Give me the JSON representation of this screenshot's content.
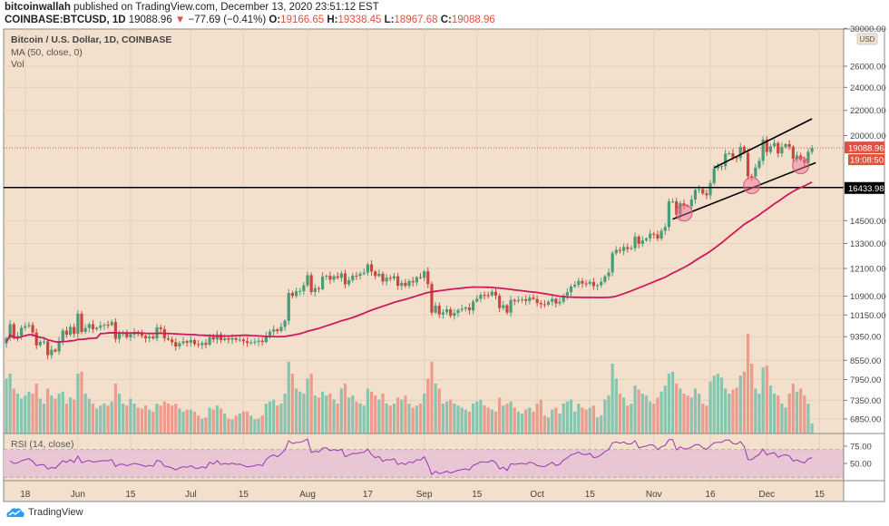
{
  "header": {
    "author": "bitcoinwallah",
    "published": "published on TradingView.com, December 13, 2020 23:51:12 EST",
    "symbol": "COINBASE:BTCUSD, 1D",
    "last": "19088.96",
    "change_arrow": "▼",
    "change": "−77.69 (−0.41%)",
    "o_label": "O:",
    "o": "19166.65",
    "h_label": "H:",
    "h": "19338.45",
    "l_label": "L:",
    "l": "18967.68",
    "c_label": "C:",
    "c": "19088.96"
  },
  "legend": {
    "title": "Bitcoin / U.S. Dollar, 1D, COINBASE",
    "ma": "MA (50, close, 0)",
    "vol": "Vol",
    "rsi": "RSI (14, close)"
  },
  "footer": {
    "brand": "TradingView"
  },
  "colors": {
    "background": "#f2dfcc",
    "up": "#4a9c78",
    "down": "#c9473b",
    "vol_up": "#88c4b0",
    "vol_down": "#ee9a8c",
    "ma": "#d0195c",
    "rsi": "#9c35b5",
    "rsi_band": "#e8c6d3",
    "price_label": "#e0513f"
  },
  "chart_data": [
    {
      "type": "candlestick",
      "title": "Bitcoin / U.S. Dollar, 1D, COINBASE",
      "start_date": "2020-05-13",
      "y_scale": "log",
      "y_currency": "USD",
      "y_ticks": [
        "30000.00",
        "26000.00",
        "24000.00",
        "22000.00",
        "20000.00",
        "14500.00",
        "13300.00",
        "12100.00",
        "10900.00",
        "10150.00",
        "9350.00",
        "8550.00",
        "7950.00",
        "7350.00",
        "6850.00"
      ],
      "x_ticks": [
        {
          "label": "18",
          "date": "2020-05-18"
        },
        {
          "label": "Jun",
          "date": "2020-06-01"
        },
        {
          "label": "15",
          "date": "2020-06-15"
        },
        {
          "label": "Jul",
          "date": "2020-07-01"
        },
        {
          "label": "15",
          "date": "2020-07-15"
        },
        {
          "label": "Aug",
          "date": "2020-08-01"
        },
        {
          "label": "17",
          "date": "2020-08-17"
        },
        {
          "label": "Sep",
          "date": "2020-09-01"
        },
        {
          "label": "15",
          "date": "2020-09-15"
        },
        {
          "label": "Oct",
          "date": "2020-10-01"
        },
        {
          "label": "15",
          "date": "2020-10-15"
        },
        {
          "label": "Nov",
          "date": "2020-11-01"
        },
        {
          "label": "16",
          "date": "2020-11-16"
        },
        {
          "label": "Dec",
          "date": "2020-12-01"
        },
        {
          "label": "15",
          "date": "2020-12-15"
        }
      ],
      "close": [
        9300,
        9800,
        9300,
        9380,
        9670,
        9730,
        9770,
        9500,
        9050,
        9170,
        9180,
        8720,
        8900,
        8840,
        9200,
        9570,
        9420,
        9700,
        9450,
        10200,
        9520,
        9660,
        9800,
        9620,
        9670,
        9750,
        9780,
        9770,
        9880,
        9270,
        9460,
        9470,
        9330,
        9430,
        9520,
        9450,
        9380,
        9290,
        9350,
        9290,
        9680,
        9620,
        9290,
        9250,
        9160,
        9010,
        9120,
        9190,
        9140,
        9230,
        9090,
        9060,
        9130,
        9070,
        9340,
        9250,
        9430,
        9230,
        9290,
        9240,
        9300,
        9240,
        9250,
        9190,
        9130,
        9150,
        9170,
        9210,
        9160,
        9390,
        9530,
        9610,
        9550,
        9700,
        9930,
        11030,
        10910,
        11100,
        11110,
        11350,
        11800,
        11070,
        11230,
        11190,
        11740,
        11770,
        11600,
        11750,
        11680,
        11880,
        11400,
        11580,
        11780,
        11770,
        11860,
        11910,
        12290,
        11960,
        11760,
        11860,
        11520,
        11680,
        11650,
        11750,
        11330,
        11460,
        11330,
        11540,
        11480,
        11710,
        11680,
        11970,
        11410,
        10240,
        10510,
        10170,
        10250,
        10370,
        10120,
        10230,
        10340,
        10390,
        10440,
        10330,
        10680,
        10790,
        10950,
        10940,
        10930,
        11080,
        10920,
        10420,
        10530,
        10240,
        10740,
        10690,
        10730,
        10770,
        10700,
        10840,
        10780,
        10620,
        10570,
        10550,
        10670,
        10790,
        10600,
        10670,
        10920,
        11060,
        11300,
        11380,
        11540,
        11430,
        11420,
        11500,
        11320,
        11360,
        11500,
        11750,
        11920,
        12820,
        12980,
        12930,
        13120,
        13030,
        13070,
        13650,
        13280,
        13460,
        13560,
        13800,
        13760,
        13550,
        13950,
        14150,
        15590,
        15590,
        14840,
        15480,
        15330,
        15310,
        15700,
        16290,
        16330,
        16070,
        15960,
        16720,
        17660,
        17800,
        17820,
        18680,
        18710,
        18420,
        18370,
        19160,
        18730,
        17150,
        17140,
        17720,
        18180,
        19700,
        18800,
        19210,
        19440,
        18700,
        19150,
        19360,
        19170,
        18320,
        18550,
        18250,
        18040,
        18810,
        19088.96
      ],
      "volume_relative": [
        55,
        60,
        45,
        40,
        35,
        38,
        42,
        40,
        50,
        35,
        30,
        45,
        38,
        35,
        40,
        42,
        30,
        36,
        34,
        60,
        62,
        40,
        35,
        30,
        25,
        28,
        30,
        28,
        32,
        50,
        40,
        30,
        28,
        35,
        30,
        26,
        25,
        28,
        24,
        22,
        30,
        28,
        32,
        30,
        28,
        30,
        25,
        22,
        24,
        24,
        22,
        18,
        15,
        16,
        26,
        24,
        28,
        25,
        20,
        15,
        14,
        18,
        20,
        22,
        22,
        18,
        14,
        15,
        18,
        30,
        32,
        34,
        28,
        30,
        40,
        72,
        60,
        45,
        42,
        40,
        55,
        60,
        38,
        36,
        42,
        38,
        40,
        34,
        30,
        45,
        50,
        36,
        38,
        32,
        30,
        28,
        45,
        42,
        38,
        34,
        40,
        30,
        28,
        30,
        36,
        34,
        38,
        30,
        26,
        28,
        30,
        40,
        55,
        72,
        50,
        45,
        30,
        32,
        34,
        30,
        28,
        26,
        24,
        22,
        30,
        32,
        34,
        28,
        26,
        24,
        22,
        36,
        28,
        30,
        32,
        26,
        22,
        20,
        24,
        26,
        22,
        30,
        34,
        18,
        16,
        24,
        26,
        20,
        30,
        32,
        34,
        22,
        30,
        26,
        24,
        26,
        28,
        16,
        18,
        34,
        38,
        70,
        55,
        40,
        36,
        28,
        30,
        48,
        44,
        40,
        38,
        32,
        30,
        36,
        42,
        48,
        60,
        62,
        50,
        45,
        40,
        38,
        36,
        45,
        40,
        30,
        28,
        52,
        58,
        60,
        56,
        45,
        40,
        44,
        46,
        58,
        62,
        100,
        70,
        45,
        40,
        66,
        68,
        48,
        40,
        38,
        30,
        26,
        40,
        50,
        42,
        45,
        38,
        30,
        10
      ],
      "moving_average": {
        "period": 50,
        "source": "close"
      },
      "price_label": "19088.96",
      "countdown_label": "19:08:50",
      "horizontal_line": {
        "value": 16433.98,
        "label": "16433.98"
      },
      "channel": [
        {
          "from": {
            "date": "2020-11-17",
            "value": 17710
          },
          "to": {
            "date": "2020-12-13",
            "value": 21310
          }
        },
        {
          "from": {
            "date": "2020-11-06",
            "value": 14580
          },
          "to": {
            "date": "2020-12-14",
            "value": 18050
          }
        }
      ],
      "highlight_circles": [
        {
          "date": "2020-11-09",
          "value": 14930
        },
        {
          "date": "2020-11-27",
          "value": 16560
        },
        {
          "date": "2020-12-10",
          "value": 17860
        }
      ]
    },
    {
      "type": "line",
      "title": "RSI (14, close)",
      "period": 14,
      "y_ticks": [
        "75.00",
        "50.00"
      ],
      "band": [
        30,
        70
      ]
    }
  ]
}
